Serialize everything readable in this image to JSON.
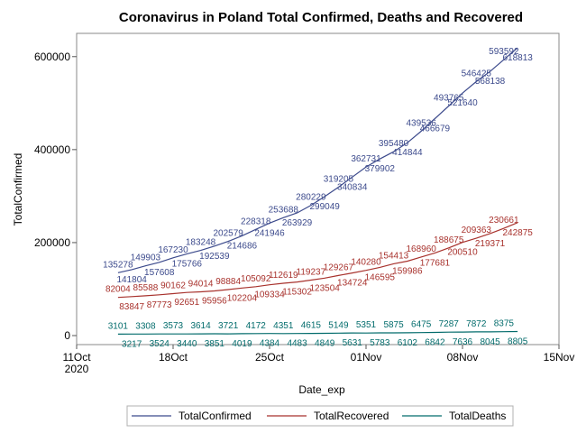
{
  "chart_data": {
    "type": "line",
    "title": "Coronavirus in Poland Total Confirmed, Deaths and Recovered",
    "xlabel": "Date_exp",
    "ylabel": "TotalConfirmed",
    "xlim": [
      "2020-10-11",
      "2020-11-15"
    ],
    "ylim": [
      0,
      650000
    ],
    "x_ticks": [
      {
        "date": "2020-10-11",
        "label": "11Oct",
        "sublabel": "2020"
      },
      {
        "date": "2020-10-18",
        "label": "18Oct",
        "sublabel": ""
      },
      {
        "date": "2020-10-25",
        "label": "25Oct",
        "sublabel": ""
      },
      {
        "date": "2020-11-01",
        "label": "01Nov",
        "sublabel": ""
      },
      {
        "date": "2020-11-08",
        "label": "08Nov",
        "sublabel": ""
      },
      {
        "date": "2020-11-15",
        "label": "15Nov",
        "sublabel": ""
      }
    ],
    "y_ticks": [
      {
        "value": 0,
        "label": "0"
      },
      {
        "value": 200000,
        "label": "200000"
      },
      {
        "value": 400000,
        "label": "400000"
      },
      {
        "value": 600000,
        "label": "600000"
      }
    ],
    "grid": false,
    "legend_position": "bottom",
    "x": [
      "2020-10-14",
      "2020-10-15",
      "2020-10-16",
      "2020-10-17",
      "2020-10-18",
      "2020-10-19",
      "2020-10-20",
      "2020-10-21",
      "2020-10-22",
      "2020-10-23",
      "2020-10-24",
      "2020-10-25",
      "2020-10-26",
      "2020-10-27",
      "2020-10-28",
      "2020-10-29",
      "2020-10-30",
      "2020-10-31",
      "2020-11-01",
      "2020-11-02",
      "2020-11-03",
      "2020-11-04",
      "2020-11-05",
      "2020-11-06",
      "2020-11-07",
      "2020-11-08",
      "2020-11-09",
      "2020-11-10",
      "2020-11-11",
      "2020-11-12",
      "2020-11-13"
    ],
    "series": [
      {
        "name": "TotalConfirmed",
        "color": "#3c4a8c",
        "values": [
          135278,
          141804,
          149903,
          157608,
          167230,
          175766,
          183248,
          192539,
          202579,
          214686,
          228318,
          241946,
          253688,
          263929,
          280229,
          299049,
          319205,
          340834,
          362731,
          379902,
          395480,
          414844,
          439536,
          466679,
          493765,
          521640,
          546425,
          568138,
          593592,
          618813,
          null
        ]
      },
      {
        "name": "TotalRecovered",
        "color": "#a8322d",
        "values": [
          82004,
          83847,
          85588,
          87773,
          90162,
          92651,
          94014,
          95956,
          98884,
          102204,
          105092,
          109334,
          112619,
          115302,
          119237,
          123504,
          129267,
          134724,
          140280,
          146595,
          154413,
          159986,
          168960,
          177681,
          188675,
          200510,
          209363,
          219371,
          230661,
          242875,
          null
        ]
      },
      {
        "name": "TotalDeaths",
        "color": "#036c6c",
        "values": [
          3101,
          3217,
          3308,
          3524,
          3573,
          3440,
          3614,
          3851,
          3721,
          4019,
          4172,
          4384,
          4351,
          4483,
          4615,
          4849,
          5149,
          5631,
          5351,
          5783,
          5875,
          6102,
          6475,
          6842,
          7287,
          7636,
          7872,
          8045,
          8375,
          8805,
          null
        ]
      }
    ],
    "legend": [
      {
        "name": "TotalConfirmed",
        "color": "#3c4a8c"
      },
      {
        "name": "TotalRecovered",
        "color": "#a8322d"
      },
      {
        "name": "TotalDeaths",
        "color": "#036c6c"
      }
    ]
  }
}
